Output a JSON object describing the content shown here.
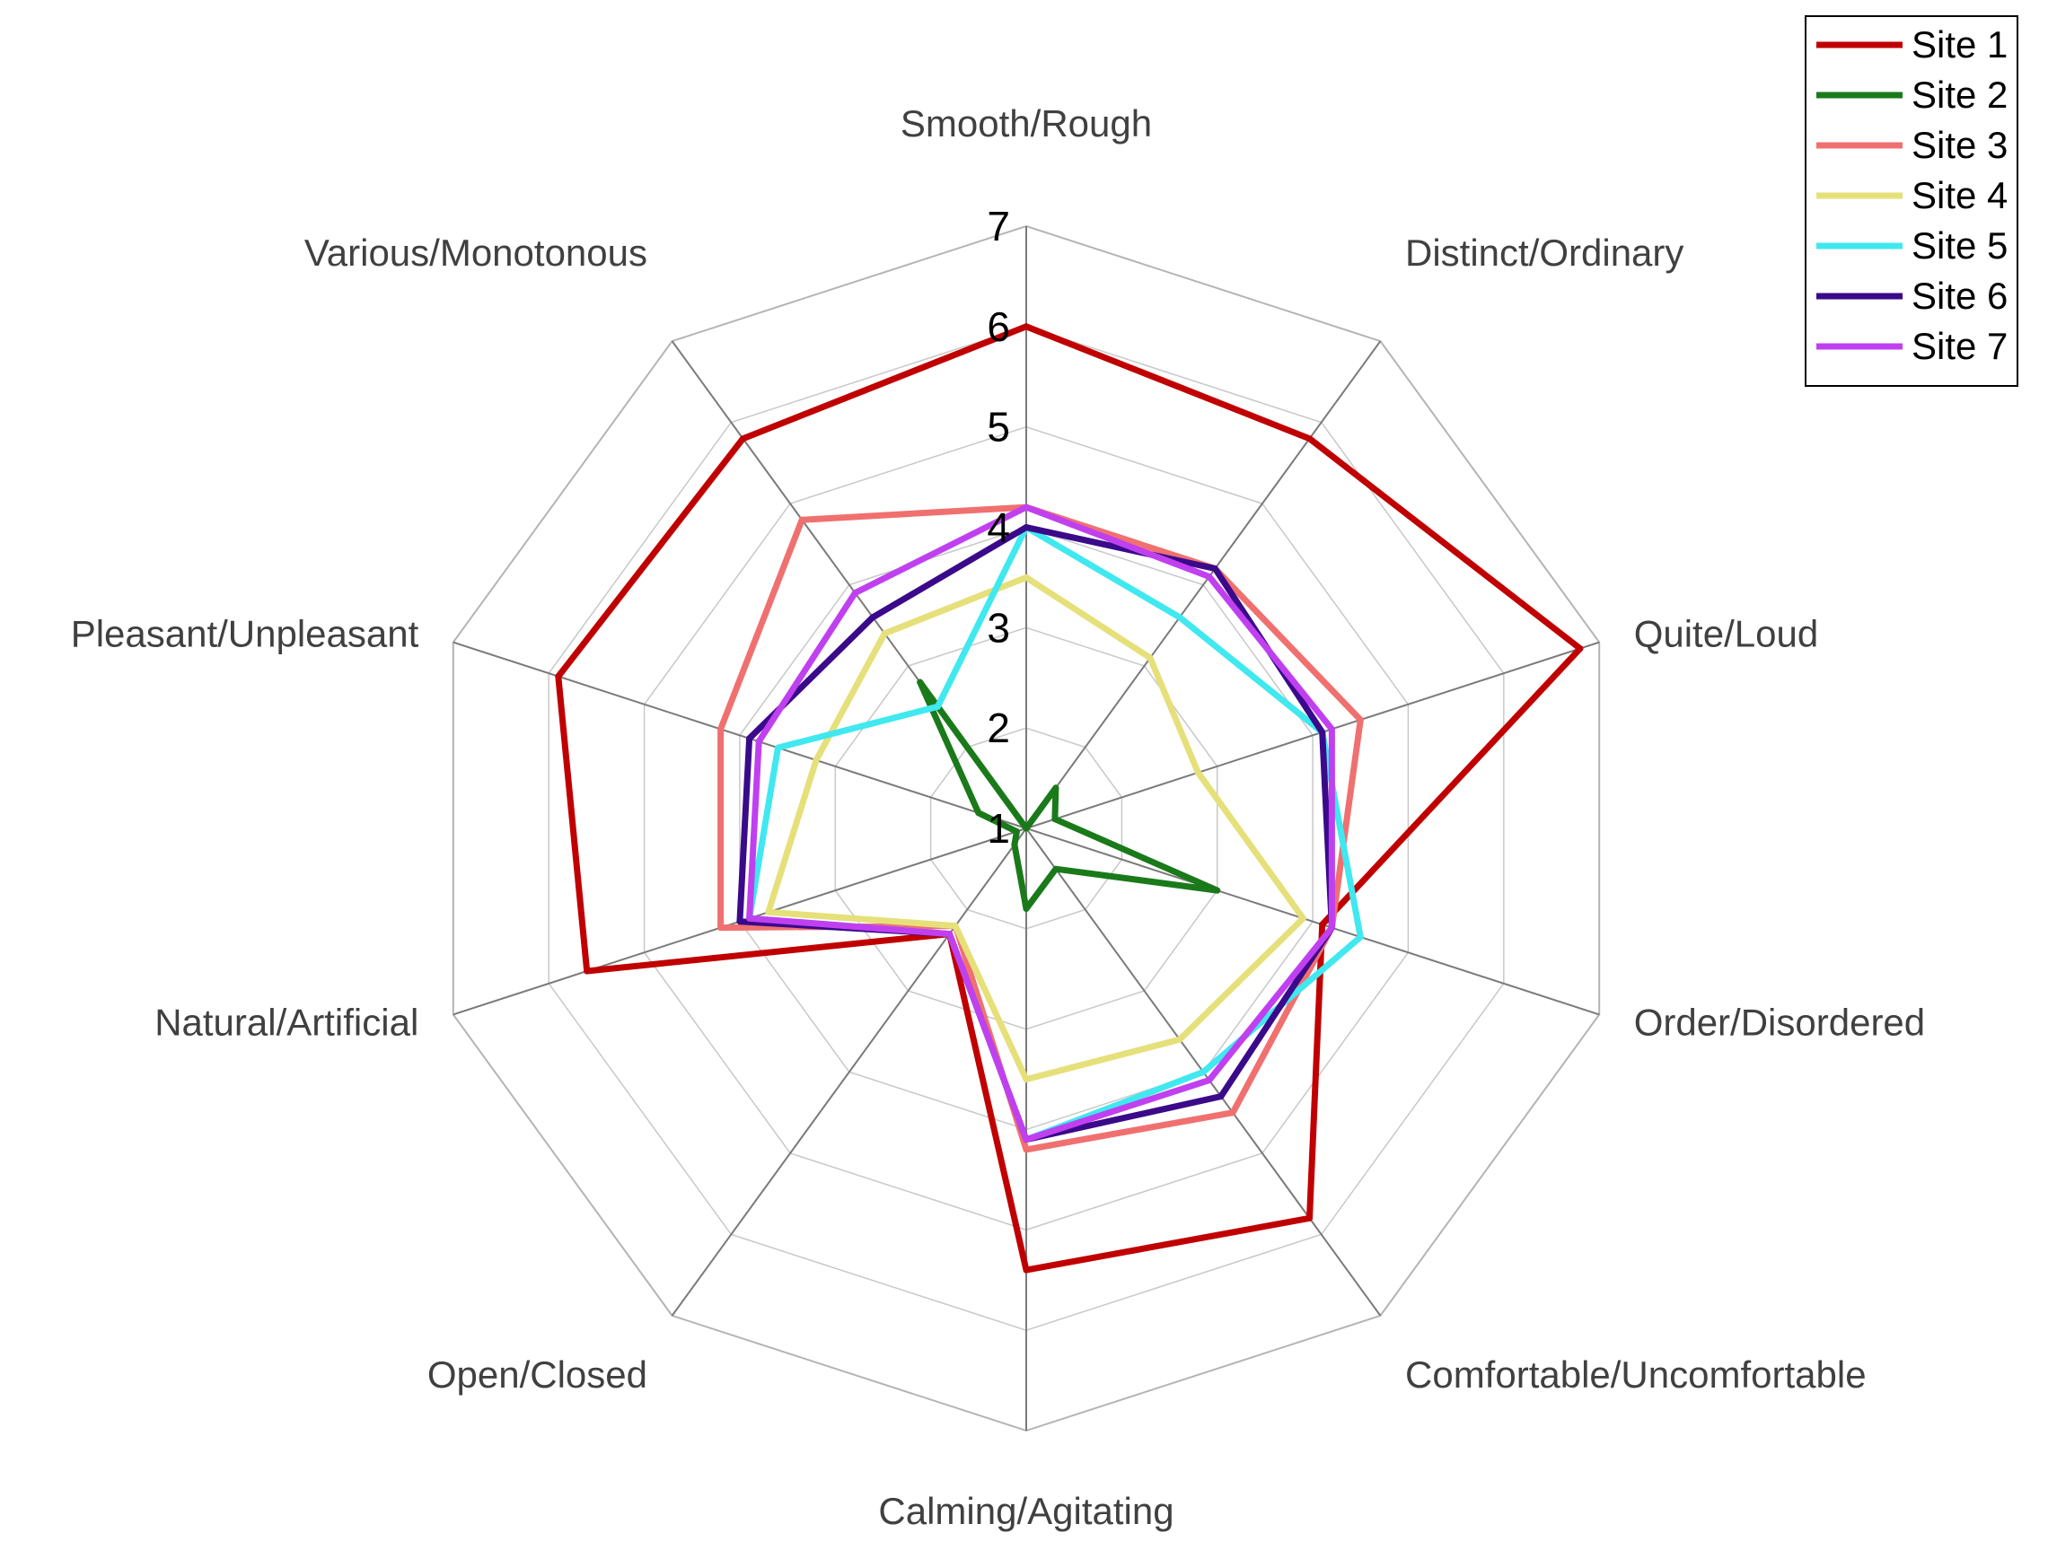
{
  "chart_data": {
    "type": "radar",
    "axes": [
      "Smooth/Rough",
      "Distinct/Ordinary",
      "Quite/Loud",
      "Order/Disordered",
      "Comfortable/Uncomfortable",
      "Calming/Agitating",
      "Open/Closed",
      "Natural/Artificial",
      "Pleasant/Unpleasant",
      "Various/Monotonous"
    ],
    "rlim": [
      1,
      7
    ],
    "ticks": [
      "1",
      "2",
      "3",
      "4",
      "5",
      "6",
      "7"
    ],
    "grid": true,
    "legend_position": "top-right",
    "series": [
      {
        "name": "Site 1",
        "color": "#c00000",
        "values": [
          6.0,
          5.8,
          6.8,
          4.1,
          5.8,
          5.4,
          2.3,
          5.6,
          5.9,
          5.8
        ]
      },
      {
        "name": "Site 2",
        "color": "#1a7a1a",
        "values": [
          1.0,
          1.5,
          1.3,
          3.0,
          1.5,
          1.8,
          1.2,
          1.1,
          1.5,
          2.8
        ]
      },
      {
        "name": "Site 3",
        "color": "#f07070",
        "values": [
          4.2,
          4.2,
          4.5,
          4.2,
          4.5,
          4.2,
          2.2,
          4.2,
          4.2,
          4.8
        ]
      },
      {
        "name": "Site 4",
        "color": "#e6e07a",
        "values": [
          3.5,
          3.1,
          2.8,
          3.9,
          3.6,
          3.5,
          2.2,
          3.7,
          3.2,
          3.4
        ]
      },
      {
        "name": "Site 5",
        "color": "#40e8f0",
        "values": [
          4.0,
          3.6,
          4.1,
          4.5,
          4.0,
          4.1,
          2.3,
          3.9,
          3.6,
          2.5
        ]
      },
      {
        "name": "Site 6",
        "color": "#3a0a8a",
        "values": [
          4.0,
          4.2,
          4.1,
          4.2,
          4.3,
          4.1,
          2.3,
          4.0,
          3.9,
          3.6
        ]
      },
      {
        "name": "Site 7",
        "color": "#c040f0",
        "values": [
          4.2,
          4.1,
          4.2,
          4.2,
          4.1,
          4.1,
          2.3,
          3.9,
          3.8,
          3.9
        ]
      }
    ]
  }
}
